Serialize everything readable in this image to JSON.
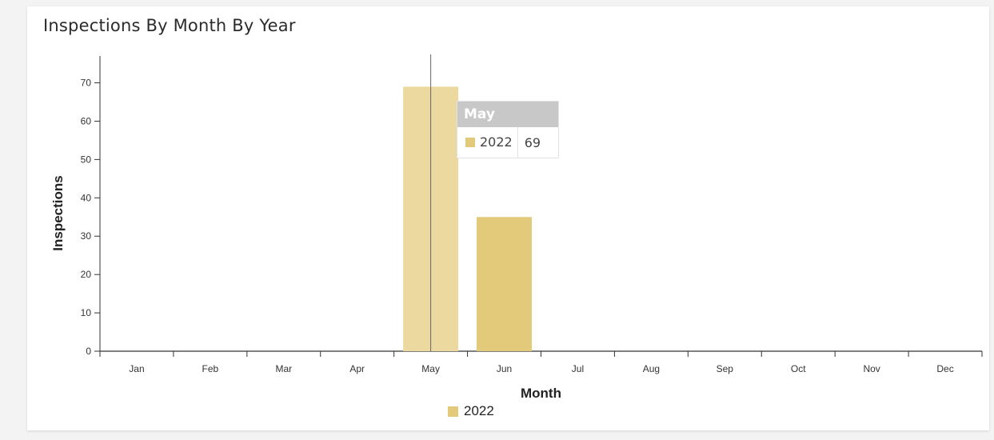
{
  "chart_data": {
    "type": "bar",
    "title": "Inspections By Month By Year",
    "xlabel": "Month",
    "ylabel": "Inspections",
    "categories": [
      "Jan",
      "Feb",
      "Mar",
      "Apr",
      "May",
      "Jun",
      "Jul",
      "Aug",
      "Sep",
      "Oct",
      "Nov",
      "Dec"
    ],
    "series": [
      {
        "name": "2022",
        "values": [
          0,
          0,
          0,
          0,
          69,
          35,
          0,
          0,
          0,
          0,
          0,
          0
        ],
        "color": "#e3c97a"
      }
    ],
    "yticks": [
      "0",
      "10",
      "20",
      "30",
      "40",
      "50",
      "60",
      "70"
    ],
    "ylim": [
      0,
      77
    ],
    "grid": false,
    "legend_position": "bottom"
  },
  "tooltip": {
    "category": "May",
    "series": "2022",
    "value": "69"
  },
  "colors": {
    "bar": "#e3c97a",
    "bar_hover": "#ecd9a0",
    "tooltip_header": "#c8c8c8",
    "axis": "#333333"
  }
}
